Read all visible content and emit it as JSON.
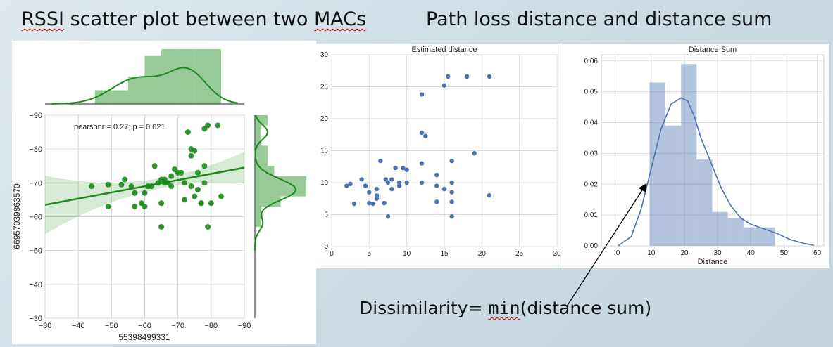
{
  "headings": {
    "left_prefix": "RSSI",
    "left_rest": " scatter plot between two ",
    "left_suffix": "MACs",
    "right": "Path loss distance and distance sum"
  },
  "annotation": {
    "prefix": "Dissimilarity= ",
    "func": "min",
    "arg": "(distance sum)"
  },
  "chart_data": [
    {
      "type": "scatter",
      "title": "",
      "xlabel": "55398499331",
      "ylabel": "66957039863570",
      "xlim": [
        -30,
        -90
      ],
      "ylim": [
        -30,
        -90
      ],
      "x_ticks": [
        "−30",
        "−40",
        "−50",
        "−60",
        "−70",
        "−80",
        "−90"
      ],
      "y_ticks": [
        "−30",
        "−40",
        "−50",
        "−60",
        "−70",
        "−80",
        "−90"
      ],
      "annotation": "pearsonr = 0.27; p = 0.021",
      "regression": {
        "x0": -30,
        "y0": -63.5,
        "x1": -90,
        "y1": -74.5
      },
      "color": "#1a8a1a",
      "grid": true,
      "points": [
        [
          -44,
          -69
        ],
        [
          -49,
          -69.5
        ],
        [
          -49,
          -63
        ],
        [
          -53,
          -69.5
        ],
        [
          -54,
          -71
        ],
        [
          -56,
          -69
        ],
        [
          -57,
          -67
        ],
        [
          -57,
          -63
        ],
        [
          -59,
          -64
        ],
        [
          -60,
          -67
        ],
        [
          -60,
          -63
        ],
        [
          -61,
          -69
        ],
        [
          -62,
          -69
        ],
        [
          -63,
          -75
        ],
        [
          -64,
          -70
        ],
        [
          -65,
          -64
        ],
        [
          -65,
          -71
        ],
        [
          -65,
          -57
        ],
        [
          -66,
          -70
        ],
        [
          -66,
          -71
        ],
        [
          -67,
          -70
        ],
        [
          -68,
          -72
        ],
        [
          -68,
          -69
        ],
        [
          -69,
          -74
        ],
        [
          -70,
          -73
        ],
        [
          -71,
          -73
        ],
        [
          -72,
          -70
        ],
        [
          -73,
          -85
        ],
        [
          -74,
          -69
        ],
        [
          -74,
          -80
        ],
        [
          -74,
          -78
        ],
        [
          -75,
          -66
        ],
        [
          -75,
          -79.5
        ],
        [
          -76,
          -73
        ],
        [
          -76,
          -68
        ],
        [
          -77,
          -64
        ],
        [
          -77,
          -64
        ],
        [
          -78,
          -86
        ],
        [
          -78,
          -70
        ],
        [
          -78,
          -75
        ],
        [
          -79,
          -87
        ],
        [
          -79,
          -57
        ],
        [
          -80,
          -64
        ],
        [
          -82,
          -87
        ],
        [
          -83,
          -66
        ],
        [
          -72,
          -65
        ]
      ],
      "marginal_x": {
        "type": "histogram",
        "bins": [
          -45,
          -50,
          -55,
          -60,
          -65,
          -70,
          -75,
          -83
        ],
        "counts": [
          2,
          2,
          4,
          7,
          8,
          8,
          8
        ]
      },
      "marginal_y": {
        "type": "histogram",
        "bins": [
          -57,
          -60,
          -63,
          -66,
          -69,
          -72,
          -75,
          -78,
          -81,
          -84,
          -87,
          -90
        ],
        "counts": [
          1,
          1,
          4,
          8,
          8,
          3,
          2,
          2,
          1,
          1,
          2
        ]
      }
    },
    {
      "type": "scatter",
      "title": "Estimated distance",
      "xlabel": "",
      "ylabel": "",
      "xlim": [
        0,
        30
      ],
      "ylim": [
        0,
        30
      ],
      "x_ticks": [
        "0",
        "5",
        "10",
        "15",
        "20",
        "25",
        "30"
      ],
      "y_ticks": [
        "0",
        "5",
        "10",
        "15",
        "20",
        "25",
        "30"
      ],
      "color": "#4c72b0",
      "grid": true,
      "points": [
        [
          2,
          9.5
        ],
        [
          2.5,
          9.8
        ],
        [
          3,
          6.7
        ],
        [
          4,
          10.5
        ],
        [
          4.5,
          9.5
        ],
        [
          5,
          8.5
        ],
        [
          5,
          6.8
        ],
        [
          5.5,
          6.7
        ],
        [
          6,
          9
        ],
        [
          6,
          8
        ],
        [
          6,
          7.5
        ],
        [
          6.5,
          13.4
        ],
        [
          7,
          6.8
        ],
        [
          7.2,
          10.5
        ],
        [
          7.5,
          4.7
        ],
        [
          7.5,
          10
        ],
        [
          8,
          10.5
        ],
        [
          8,
          9
        ],
        [
          8.5,
          12.3
        ],
        [
          9,
          10
        ],
        [
          9,
          9.5
        ],
        [
          9.5,
          12.3
        ],
        [
          10,
          10
        ],
        [
          10,
          12
        ],
        [
          12,
          23.8
        ],
        [
          12,
          17.8
        ],
        [
          12,
          13
        ],
        [
          12,
          10
        ],
        [
          12.5,
          17.3
        ],
        [
          14,
          9.5
        ],
        [
          14,
          11.2
        ],
        [
          14,
          7
        ],
        [
          15,
          9
        ],
        [
          15,
          25.2
        ],
        [
          15.5,
          26.6
        ],
        [
          16,
          13.4
        ],
        [
          16,
          10
        ],
        [
          16,
          8.5
        ],
        [
          16,
          7
        ],
        [
          16,
          4.7
        ],
        [
          18,
          26.6
        ],
        [
          19,
          14.6
        ],
        [
          21,
          26.6
        ],
        [
          21,
          8
        ]
      ]
    },
    {
      "type": "histogram",
      "title": "Distance Sum",
      "xlabel": "Distance",
      "ylabel": "",
      "xlim": [
        -5,
        62
      ],
      "ylim": [
        0,
        0.062
      ],
      "x_ticks": [
        "0",
        "10",
        "20",
        "30",
        "40",
        "50",
        "60"
      ],
      "y_ticks": [
        "0.00",
        "0.01",
        "0.02",
        "0.03",
        "0.04",
        "0.05",
        "0.06"
      ],
      "color": "#4c72b0",
      "grid": true,
      "bins": [
        9.5,
        14.2,
        19,
        23.7,
        28.4,
        33.1,
        37.8,
        42.6,
        47.3
      ],
      "densities": [
        0.053,
        0.039,
        0.059,
        0.028,
        0.011,
        0.009,
        0.006,
        0.006
      ],
      "kde": [
        [
          0,
          0
        ],
        [
          4,
          0.003
        ],
        [
          7,
          0.012
        ],
        [
          10,
          0.025
        ],
        [
          13,
          0.038
        ],
        [
          16,
          0.046
        ],
        [
          19,
          0.048
        ],
        [
          21,
          0.047
        ],
        [
          23,
          0.042
        ],
        [
          25,
          0.035
        ],
        [
          28,
          0.027
        ],
        [
          31,
          0.019
        ],
        [
          34,
          0.013
        ],
        [
          37,
          0.009
        ],
        [
          40,
          0.007
        ],
        [
          44,
          0.0055
        ],
        [
          48,
          0.004
        ],
        [
          52,
          0.002
        ],
        [
          56,
          0.0008
        ],
        [
          59,
          0.0002
        ]
      ]
    }
  ]
}
